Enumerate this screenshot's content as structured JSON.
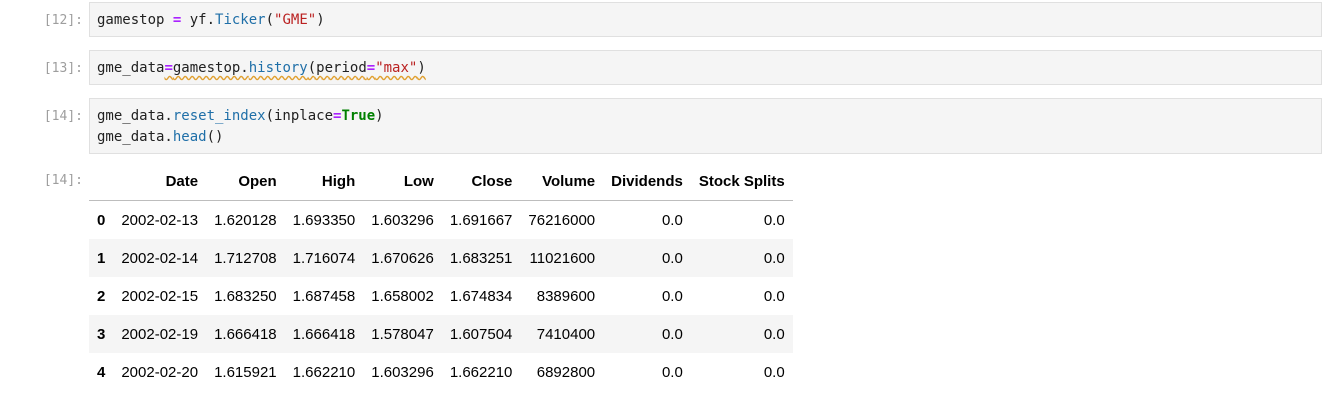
{
  "cells": [
    {
      "prompt": "[12]:",
      "line1": {
        "a": "gamestop ",
        "op": "=",
        "b": " yf.",
        "fn": "Ticker",
        "c": "(",
        "s": "\"GME\"",
        "d": ")"
      }
    },
    {
      "prompt": "[13]:",
      "line1": {
        "a": "gme_data",
        "op": "=",
        "b": "gamestop.",
        "fn": "history",
        "c": "(period",
        "op2": "=",
        "s": "\"max\"",
        "d": ")"
      }
    },
    {
      "prompt": "[14]:",
      "line1": {
        "a": "gme_data.",
        "fn": "reset_index",
        "c": "(inplace",
        "op": "=",
        "kw": "True",
        "d": ")"
      },
      "line2": {
        "a": "gme_data.",
        "fn": "head",
        "d": "()"
      }
    }
  ],
  "output": {
    "prompt": "[14]:",
    "columns": [
      "",
      "Date",
      "Open",
      "High",
      "Low",
      "Close",
      "Volume",
      "Dividends",
      "Stock Splits"
    ],
    "rows": [
      [
        "0",
        "2002-02-13",
        "1.620128",
        "1.693350",
        "1.603296",
        "1.691667",
        "76216000",
        "0.0",
        "0.0"
      ],
      [
        "1",
        "2002-02-14",
        "1.712708",
        "1.716074",
        "1.670626",
        "1.683251",
        "11021600",
        "0.0",
        "0.0"
      ],
      [
        "2",
        "2002-02-15",
        "1.683250",
        "1.687458",
        "1.658002",
        "1.674834",
        "8389600",
        "0.0",
        "0.0"
      ],
      [
        "3",
        "2002-02-19",
        "1.666418",
        "1.666418",
        "1.578047",
        "1.607504",
        "7410400",
        "0.0",
        "0.0"
      ],
      [
        "4",
        "2002-02-20",
        "1.615921",
        "1.662210",
        "1.603296",
        "1.662210",
        "6892800",
        "0.0",
        "0.0"
      ]
    ]
  }
}
